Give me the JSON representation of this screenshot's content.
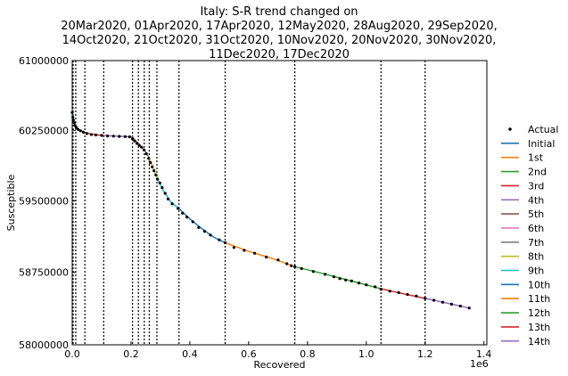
{
  "chart_data": {
    "type": "line",
    "title_lines": [
      "Italy: S-R trend changed on",
      "20Mar2020, 01Apr2020, 17Apr2020, 12May2020, 28Aug2020, 29Sep2020,",
      "14Oct2020, 21Oct2020, 31Oct2020, 10Nov2020, 20Nov2020, 30Nov2020,",
      "11Dec2020, 17Dec2020"
    ],
    "xlabel": "Recovered",
    "ylabel": "Susceptible",
    "x_offset_label": "1e6",
    "xlim": [
      0,
      1.41
    ],
    "ylim": [
      58000000,
      61000000
    ],
    "x_ticks": [
      0.0,
      0.2,
      0.4,
      0.6,
      0.8,
      1.0,
      1.2,
      1.4
    ],
    "x_tick_labels": [
      "0.0",
      "0.2",
      "0.4",
      "0.6",
      "0.8",
      "1.0",
      "1.2",
      "1.4"
    ],
    "y_ticks": [
      58000000,
      58750000,
      59500000,
      60250000,
      61000000
    ],
    "y_tick_labels": [
      "58000000",
      "58750000",
      "59500000",
      "60250000",
      "61000000"
    ],
    "y_scale": "log",
    "change_points_x": [
      0.003,
      0.012,
      0.043,
      0.107,
      0.205,
      0.225,
      0.245,
      0.262,
      0.288,
      0.363,
      0.52,
      0.757,
      1.05,
      1.2
    ],
    "legend_position": "right",
    "legend": [
      "Actual",
      "Initial",
      "1st",
      "2nd",
      "3rd",
      "4th",
      "5th",
      "6th",
      "7th",
      "8th",
      "9th",
      "10th",
      "11th",
      "12th",
      "13th",
      "14th"
    ],
    "colors": {
      "actual": "#000000",
      "Initial": "#1f77b4",
      "1st": "#ff7f0e",
      "2nd": "#2ca02c",
      "3rd": "#d62728",
      "4th": "#9467bd",
      "5th": "#8c564b",
      "6th": "#e377c2",
      "7th": "#7f7f7f",
      "8th": "#bcbd22",
      "9th": "#17becf",
      "10th": "#1f77b4",
      "11th": "#ff7f0e",
      "12th": "#2ca02c",
      "13th": "#d62728",
      "14th": "#9467bd"
    },
    "actual": {
      "x": [
        0.0,
        0.002,
        0.004,
        0.007,
        0.01,
        0.014,
        0.02,
        0.028,
        0.038,
        0.05,
        0.065,
        0.08,
        0.1,
        0.12,
        0.14,
        0.16,
        0.18,
        0.195,
        0.205,
        0.212,
        0.22,
        0.228,
        0.236,
        0.244,
        0.252,
        0.26,
        0.266,
        0.272,
        0.278,
        0.284,
        0.29,
        0.298,
        0.306,
        0.316,
        0.326,
        0.34,
        0.36,
        0.375,
        0.39,
        0.41,
        0.43,
        0.45,
        0.47,
        0.5,
        0.52,
        0.55,
        0.585,
        0.62,
        0.66,
        0.7,
        0.73,
        0.745,
        0.757,
        0.78,
        0.82,
        0.86,
        0.89,
        0.91,
        0.93,
        0.95,
        0.975,
        1.0,
        1.03,
        1.05,
        1.08,
        1.11,
        1.14,
        1.17,
        1.2,
        1.23,
        1.26,
        1.29,
        1.32,
        1.35
      ],
      "y": [
        60440000,
        60390000,
        60360000,
        60330000,
        60300000,
        60280000,
        60260000,
        60245000,
        60230000,
        60215000,
        60205000,
        60200000,
        60195000,
        60190000,
        60188000,
        60185000,
        60183000,
        60180000,
        60160000,
        60135000,
        60110000,
        60090000,
        60070000,
        60040000,
        60000000,
        59950000,
        59905000,
        59860000,
        59820000,
        59775000,
        59730000,
        59690000,
        59640000,
        59580000,
        59520000,
        59470000,
        59420000,
        59370000,
        59330000,
        59280000,
        59220000,
        59180000,
        59140000,
        59090000,
        59060000,
        59010000,
        58980000,
        58950000,
        58910000,
        58880000,
        58840000,
        58820000,
        58810000,
        58790000,
        58760000,
        58730000,
        58705000,
        58685000,
        58670000,
        58660000,
        58640000,
        58620000,
        58600000,
        58575000,
        58555000,
        58540000,
        58520000,
        58505000,
        58480000,
        58460000,
        58440000,
        58420000,
        58400000,
        58380000
      ]
    },
    "series": [
      {
        "name": "Initial",
        "x": [
          0.0,
          0.003
        ],
        "y": [
          60440000,
          60360000
        ]
      },
      {
        "name": "1st",
        "x": [
          0.003,
          0.006,
          0.009,
          0.012
        ],
        "y": [
          60360000,
          60330000,
          60305000,
          60285000
        ]
      },
      {
        "name": "2nd",
        "x": [
          0.012,
          0.02,
          0.03,
          0.043
        ],
        "y": [
          60285000,
          60265000,
          60245000,
          60228000
        ]
      },
      {
        "name": "3rd",
        "x": [
          0.043,
          0.06,
          0.08,
          0.107
        ],
        "y": [
          60228000,
          60212000,
          60202000,
          60195000
        ]
      },
      {
        "name": "4th",
        "x": [
          0.107,
          0.14,
          0.17,
          0.205
        ],
        "y": [
          60195000,
          60190000,
          60185000,
          60180000
        ]
      },
      {
        "name": "5th",
        "x": [
          0.205,
          0.215,
          0.225
        ],
        "y": [
          60180000,
          60140000,
          60105000
        ]
      },
      {
        "name": "6th",
        "x": [
          0.225,
          0.235,
          0.245
        ],
        "y": [
          60105000,
          60075000,
          60045000
        ]
      },
      {
        "name": "7th",
        "x": [
          0.245,
          0.254,
          0.262
        ],
        "y": [
          60045000,
          60000000,
          59955000
        ]
      },
      {
        "name": "8th",
        "x": [
          0.262,
          0.275,
          0.288
        ],
        "y": [
          59955000,
          59850000,
          59745000
        ]
      },
      {
        "name": "9th",
        "x": [
          0.288,
          0.31,
          0.335,
          0.363
        ],
        "y": [
          59745000,
          59610000,
          59490000,
          59420000
        ]
      },
      {
        "name": "10th",
        "x": [
          0.363,
          0.4,
          0.44,
          0.48,
          0.52
        ],
        "y": [
          59420000,
          59310000,
          59210000,
          59120000,
          59060000
        ]
      },
      {
        "name": "11th",
        "x": [
          0.52,
          0.6,
          0.68,
          0.757
        ],
        "y": [
          59060000,
          58970000,
          58895000,
          58810000
        ]
      },
      {
        "name": "12th",
        "x": [
          0.757,
          0.85,
          0.95,
          1.05
        ],
        "y": [
          58810000,
          58740000,
          58660000,
          58580000
        ]
      },
      {
        "name": "13th",
        "x": [
          1.05,
          1.1,
          1.15,
          1.2
        ],
        "y": [
          58580000,
          58545000,
          58512000,
          58480000
        ]
      },
      {
        "name": "14th",
        "x": [
          1.2,
          1.25,
          1.3,
          1.35
        ],
        "y": [
          58480000,
          58447000,
          58414000,
          58380000
        ]
      }
    ]
  }
}
